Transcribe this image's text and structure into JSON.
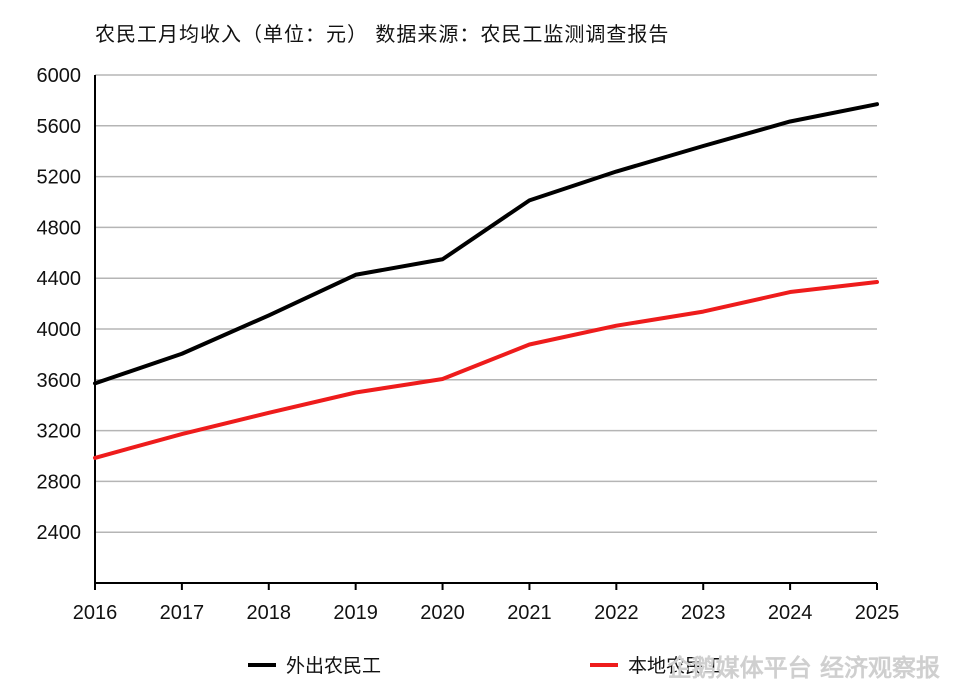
{
  "title": "农民工月均收入（单位：元） 数据来源：农民工监测调查报告",
  "watermark": "企鹅媒体平台 经济观察报",
  "colors": {
    "series1": "#000000",
    "series2": "#ee1c1c",
    "grid": "#b5b5b5",
    "axis": "#000000"
  },
  "chart_data": {
    "type": "line",
    "x": [
      2016,
      2017,
      2018,
      2019,
      2020,
      2021,
      2022,
      2023,
      2024,
      2025
    ],
    "ylim": [
      2000,
      6000
    ],
    "yticks": [
      2400,
      2800,
      3200,
      3600,
      4000,
      4400,
      4800,
      5200,
      5600,
      6000
    ],
    "grid": true,
    "legend_position": "bottom",
    "series": [
      {
        "name": "外出农民工",
        "color": "#000000",
        "values": [
          3572,
          3805,
          4107,
          4427,
          4549,
          5013,
          5240,
          5441,
          5634,
          5770
        ]
      },
      {
        "name": "本地农民工",
        "color": "#ee1c1c",
        "values": [
          2985,
          3173,
          3340,
          3500,
          3606,
          3878,
          4026,
          4137,
          4291,
          4370
        ]
      }
    ]
  }
}
